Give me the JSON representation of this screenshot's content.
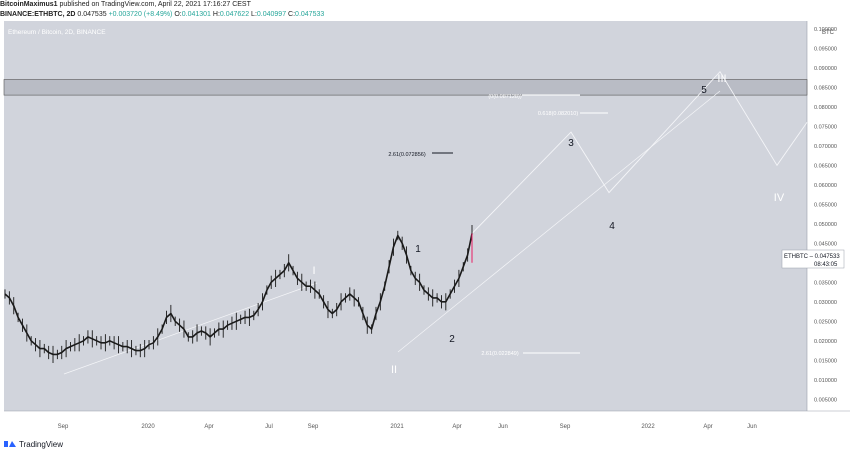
{
  "header": {
    "publisher": "BitcoinMaximus1",
    "published_text": "published on TradingView.com, April 22, 2021 17:16:27 CEST",
    "symbol": "BINANCE:ETHBTC, 2D",
    "last": "0.047535",
    "change": "+0.003720 (+8.49%)",
    "o_label": "O:",
    "o_value": "0.041301",
    "h_label": "H:",
    "h_value": "0.047622",
    "l_label": "L:",
    "l_value": "0.040997",
    "c_label": "C:",
    "c_value": "0.047533"
  },
  "chart_label": "Ethereum / Bitcoin, 2D, BINANCE",
  "currency": "BTC",
  "price_tag": {
    "symbol": "ETHBTC",
    "value": "0.047533",
    "countdown": "08:43:05"
  },
  "footer": {
    "brand": "TradingView"
  },
  "colors": {
    "plot_bg": "#d1d4dc",
    "candle": "#1a1a1a",
    "projection": "#f4f5f8",
    "resistance": "#b9bcc5",
    "last_bar": "#e91e63"
  },
  "chart_data": {
    "type": "line",
    "title": "Ethereum / Bitcoin, 2D, BINANCE",
    "x_ticks": [
      "Sep",
      "2020",
      "Apr",
      "Jul",
      "Sep",
      "2021",
      "Apr",
      "Jun",
      "Sep",
      "2022",
      "Apr",
      "Jun"
    ],
    "y_ticks": [
      "0.100000",
      "0.095000",
      "0.090000",
      "0.085000",
      "0.080000",
      "0.075000",
      "0.070000",
      "0.065000",
      "0.060000",
      "0.055000",
      "0.050000",
      "0.045000",
      "0.040000",
      "0.035000",
      "0.030000",
      "0.025000",
      "0.020000",
      "0.015000",
      "0.010000",
      "0.005000"
    ],
    "ylim": [
      0.002,
      0.102
    ],
    "grid": false,
    "series": [
      {
        "values": [
          0.032,
          0.031,
          0.029,
          0.026,
          0.024,
          0.022,
          0.02,
          0.019,
          0.018,
          0.018,
          0.017,
          0.0165,
          0.0165,
          0.017,
          0.018,
          0.0185,
          0.019,
          0.0195,
          0.02,
          0.021,
          0.0205,
          0.02,
          0.0195,
          0.0195,
          0.02,
          0.0195,
          0.019,
          0.0185,
          0.0185,
          0.018,
          0.0175,
          0.0175,
          0.018,
          0.019,
          0.0195,
          0.021,
          0.023,
          0.026,
          0.027,
          0.025,
          0.024,
          0.023,
          0.021,
          0.021,
          0.022,
          0.0225,
          0.022,
          0.021,
          0.022,
          0.023,
          0.023,
          0.024,
          0.0245,
          0.025,
          0.0255,
          0.026,
          0.026,
          0.0265,
          0.028,
          0.03,
          0.033,
          0.035,
          0.036,
          0.037,
          0.038,
          0.04,
          0.038,
          0.036,
          0.035,
          0.034,
          0.034,
          0.033,
          0.032,
          0.03,
          0.028,
          0.027,
          0.028,
          0.03,
          0.031,
          0.032,
          0.031,
          0.03,
          0.027,
          0.024,
          0.023,
          0.027,
          0.03,
          0.034,
          0.039,
          0.044,
          0.047,
          0.045,
          0.042,
          0.038,
          0.036,
          0.035,
          0.033,
          0.032,
          0.031,
          0.031,
          0.03,
          0.03,
          0.032,
          0.034,
          0.036,
          0.039,
          0.042,
          0.0475
        ]
      }
    ],
    "annotations": [
      {
        "text": "I",
        "kind": "wave"
      },
      {
        "text": "II",
        "kind": "wave"
      },
      {
        "text": "1",
        "kind": "wave"
      },
      {
        "text": "2",
        "kind": "wave"
      },
      {
        "text": "3",
        "kind": "wave"
      },
      {
        "text": "4",
        "kind": "wave"
      },
      {
        "text": "5",
        "kind": "wave"
      },
      {
        "text": "III",
        "kind": "wave"
      },
      {
        "text": "IV",
        "kind": "wave"
      },
      {
        "text": "2.61(0.072856)",
        "kind": "fib"
      },
      {
        "text": "2.61(0.022849)",
        "kind": "fib"
      },
      {
        "text": "(0(0.087128))",
        "kind": "fib"
      },
      {
        "text": "0.618(0.082010)",
        "kind": "fib"
      }
    ],
    "projection_path": [
      {
        "x": "Apr 2021",
        "y": 0.0475
      },
      {
        "x": "Sep 2021",
        "y": 0.0735
      },
      {
        "x": "Oct 2021",
        "y": 0.058
      },
      {
        "x": "Apr 2022",
        "y": 0.089
      },
      {
        "x": "Jun 2022",
        "y": 0.065
      },
      {
        "x": "Aug 2022",
        "y": 0.076
      }
    ],
    "resistance_zone": [
      0.083,
      0.087
    ]
  }
}
